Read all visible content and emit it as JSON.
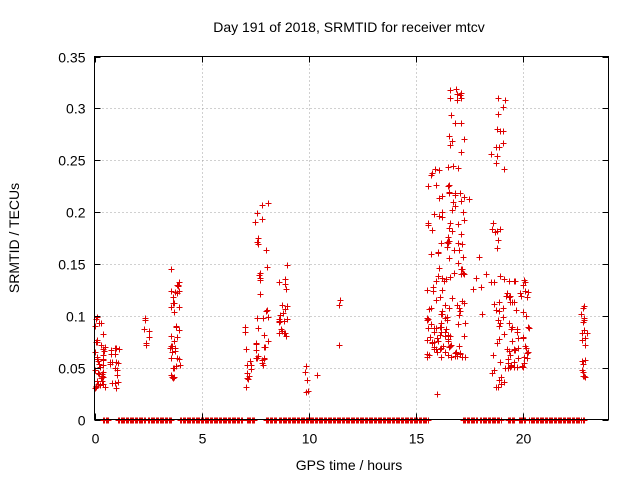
{
  "chart_data": {
    "type": "scatter",
    "title": "Day 191 of 2018, SRMTID for receiver mtcv",
    "xlabel": "GPS time / hours",
    "ylabel": "SRMTID / TECUs",
    "xlim": [
      0,
      24
    ],
    "ylim": [
      0,
      0.35
    ],
    "x_ticks": [
      0,
      5,
      10,
      15,
      20
    ],
    "x_tick_labels": [
      "0",
      "5",
      "10",
      "15",
      "20"
    ],
    "y_ticks": [
      0,
      0.05,
      0.1,
      0.15,
      0.2,
      0.25,
      0.3,
      0.35
    ],
    "y_tick_labels": [
      "0",
      "0.05",
      "0.1",
      "0.15",
      "0.2",
      "0.25",
      "0.3",
      "0.35"
    ],
    "grid": true,
    "marker": "plus",
    "series": [
      {
        "name": "SRMTID",
        "color": "#dd0000",
        "clusters": [
          {
            "x": [
              0.0,
              0.5
            ],
            "y": [
              0.03,
              0.1
            ],
            "n": 40
          },
          {
            "x": [
              0.7,
              1.2
            ],
            "y": [
              0.03,
              0.07
            ],
            "n": 18
          },
          {
            "x": [
              2.3,
              2.6
            ],
            "y": [
              0.07,
              0.105
            ],
            "n": 7
          },
          {
            "x": [
              3.5,
              4.0
            ],
            "y": [
              0.04,
              0.145
            ],
            "n": 38
          },
          {
            "x": [
              7.0,
              7.3
            ],
            "y": [
              0.03,
              0.09
            ],
            "n": 12
          },
          {
            "x": [
              7.5,
              8.1
            ],
            "y": [
              0.05,
              0.21
            ],
            "n": 36
          },
          {
            "x": [
              8.6,
              9.0
            ],
            "y": [
              0.08,
              0.155
            ],
            "n": 22
          },
          {
            "x": [
              9.8,
              10.0
            ],
            "y": [
              0.025,
              0.055
            ],
            "n": 5
          },
          {
            "x": [
              15.5,
              16.6
            ],
            "y": [
              0.06,
              0.245
            ],
            "n": 90
          },
          {
            "x": [
              16.5,
              17.3
            ],
            "y": [
              0.06,
              0.32
            ],
            "n": 70
          },
          {
            "x": [
              17.6,
              18.3
            ],
            "y": [
              0.08,
              0.16
            ],
            "n": 6
          },
          {
            "x": [
              18.5,
              19.2
            ],
            "y": [
              0.03,
              0.31
            ],
            "n": 45
          },
          {
            "x": [
              19.2,
              20.3
            ],
            "y": [
              0.05,
              0.135
            ],
            "n": 60
          },
          {
            "x": [
              22.7,
              23.0
            ],
            "y": [
              0.04,
              0.11
            ],
            "n": 20
          }
        ],
        "extra_points": [
          {
            "x": 10.4,
            "y": 0.043
          },
          {
            "x": 11.4,
            "y": 0.072
          },
          {
            "x": 11.4,
            "y": 0.11
          },
          {
            "x": 11.45,
            "y": 0.115
          },
          {
            "x": 16.0,
            "y": 0.025
          },
          {
            "x": 16.6,
            "y": 0.318
          },
          {
            "x": 16.6,
            "y": 0.31
          },
          {
            "x": 16.6,
            "y": 0.265
          },
          {
            "x": 18.85,
            "y": 0.31
          },
          {
            "x": 18.85,
            "y": 0.295
          },
          {
            "x": 18.8,
            "y": 0.28
          },
          {
            "x": 18.75,
            "y": 0.263
          },
          {
            "x": 17.5,
            "y": 0.213
          }
        ],
        "zero_ranges": [
          [
            0.4,
            0.7
          ],
          [
            1.1,
            2.4
          ],
          [
            2.5,
            3.6
          ],
          [
            4.0,
            6.9
          ],
          [
            7.1,
            7.5
          ],
          [
            8.0,
            8.5
          ],
          [
            8.6,
            15.6
          ],
          [
            17.2,
            17.9
          ],
          [
            18.0,
            19.0
          ],
          [
            19.3,
            19.6
          ],
          [
            19.8,
            20.1
          ],
          [
            20.3,
            22.7
          ],
          [
            22.8,
            22.9
          ]
        ]
      }
    ]
  }
}
